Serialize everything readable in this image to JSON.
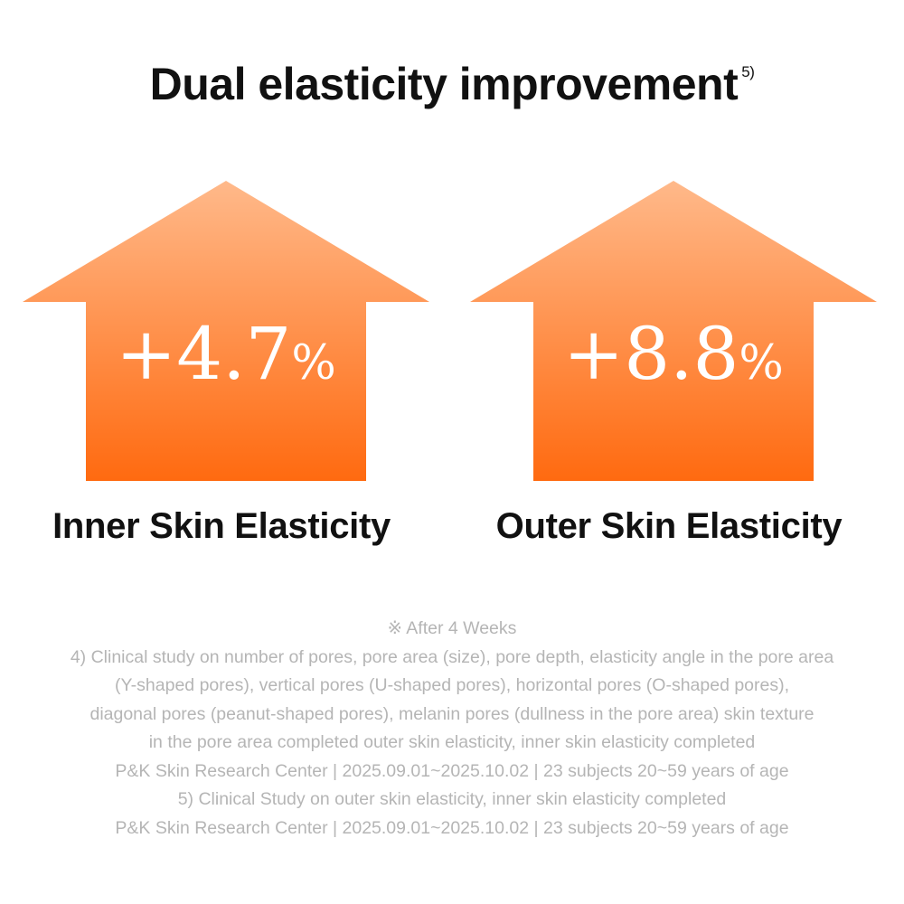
{
  "title": {
    "text": "Dual elasticity improvement",
    "footnote_ref": "5)"
  },
  "metrics": [
    {
      "value": "+4.7",
      "unit": "%",
      "label": "Inner Skin Elasticity"
    },
    {
      "value": "+8.8",
      "unit": "%",
      "label": "Outer Skin Elasticity"
    }
  ],
  "colors": {
    "arrow_top": "#ffb98a",
    "arrow_bottom": "#ff6a10",
    "text_dark": "#111111",
    "footnote_gray": "#b5b5b5"
  },
  "notes": [
    "※ After 4 Weeks",
    "4) Clinical study on number of pores, pore area (size), pore depth, elasticity angle in the pore area",
    "(Y-shaped pores), vertical pores (U-shaped pores), horizontal pores (O-shaped pores),",
    "diagonal pores (peanut-shaped pores), melanin pores (dullness in the pore area) skin texture",
    "in the pore area completed outer skin elasticity, inner skin elasticity completed",
    "P&K Skin Research Center | 2025.09.01~2025.10.02 | 23 subjects 20~59 years of age",
    "5) Clinical Study on outer skin elasticity, inner skin elasticity completed",
    "P&K Skin Research Center | 2025.09.01~2025.10.02 | 23 subjects 20~59 years of age"
  ]
}
